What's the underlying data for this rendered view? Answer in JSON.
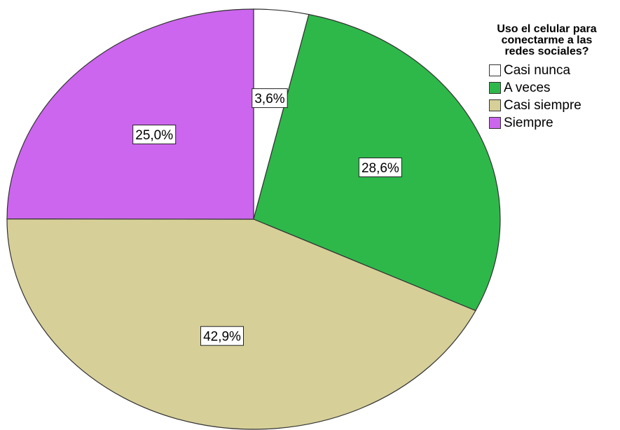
{
  "chart_data": {
    "type": "pie",
    "legend_title": "Uso el celular para\nconectarme a las\nredes sociales?",
    "legend_position": "top-right",
    "slices": [
      {
        "name": "Casi nunca",
        "value": 3.6,
        "label": "3,6%",
        "color": "#ffffff"
      },
      {
        "name": "A veces",
        "value": 28.6,
        "label": "28,6%",
        "color": "#2eb84a"
      },
      {
        "name": "Casi siempre",
        "value": 42.9,
        "label": "42,9%",
        "color": "#d6cf98"
      },
      {
        "name": "Siempre",
        "value": 25.0,
        "label": "25,0%",
        "color": "#cc66ee"
      }
    ]
  }
}
